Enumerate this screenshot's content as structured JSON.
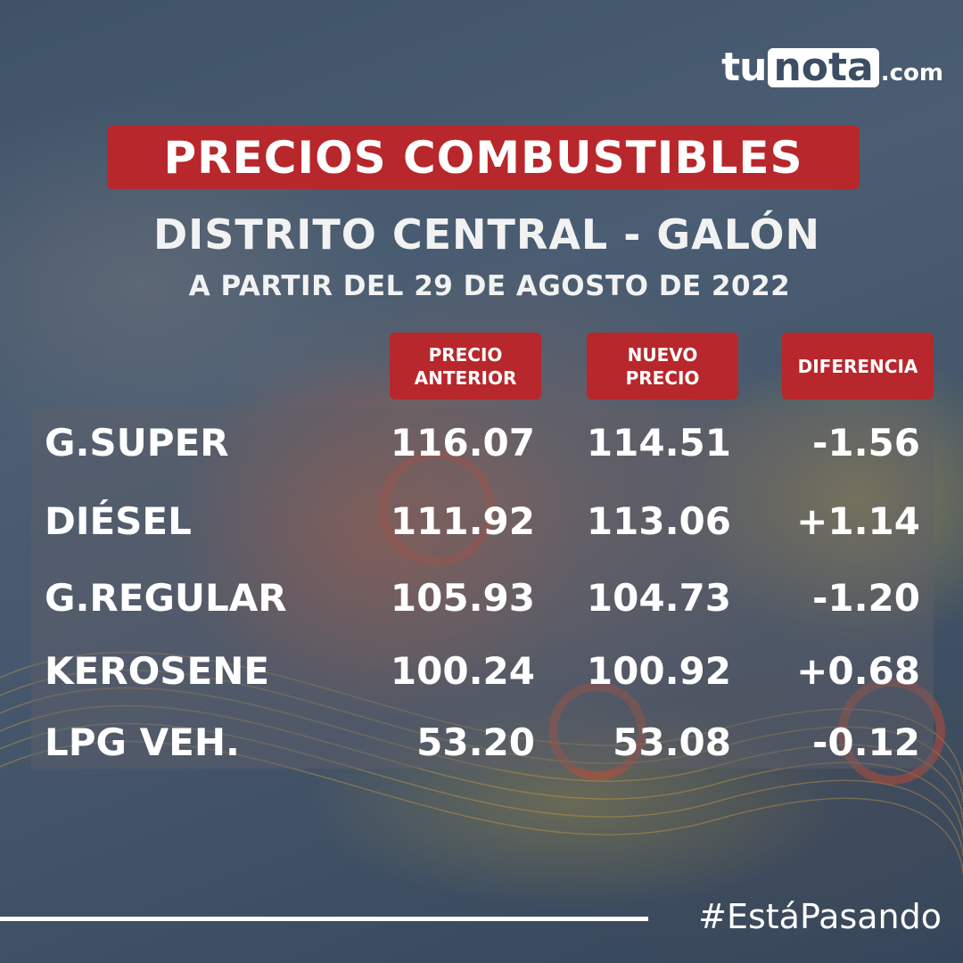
{
  "brand": {
    "tu": "tu",
    "nota": "nota",
    "dotcom": ".com"
  },
  "title": "PRECIOS COMBUSTIBLES",
  "subtitle": "DISTRITO CENTRAL - GALÓN",
  "date_line": "A PARTIR DEL 29 DE AGOSTO DE 2022",
  "columns": {
    "previous": "PRECIO\nANTERIOR",
    "new": "NUEVO\nPRECIO",
    "difference": "DIFERENCIA"
  },
  "rows": [
    {
      "fuel": "G.SUPER",
      "previous": "116.07",
      "new": "114.51",
      "difference": "-1.56"
    },
    {
      "fuel": "DIÉSEL",
      "previous": "111.92",
      "new": "113.06",
      "difference": "+1.14"
    },
    {
      "fuel": "G.REGULAR",
      "previous": "105.93",
      "new": "104.73",
      "difference": "-1.20"
    },
    {
      "fuel": "KEROSENE",
      "previous": "100.24",
      "new": "100.92",
      "difference": "+0.68"
    },
    {
      "fuel": "LPG VEH.",
      "previous": "53.20",
      "new": "53.08",
      "difference": "-0.12"
    }
  ],
  "hashtag": "#EstáPasando",
  "colors": {
    "accent_red": "#b8272b",
    "background": "#44556a",
    "text": "#ffffff"
  }
}
